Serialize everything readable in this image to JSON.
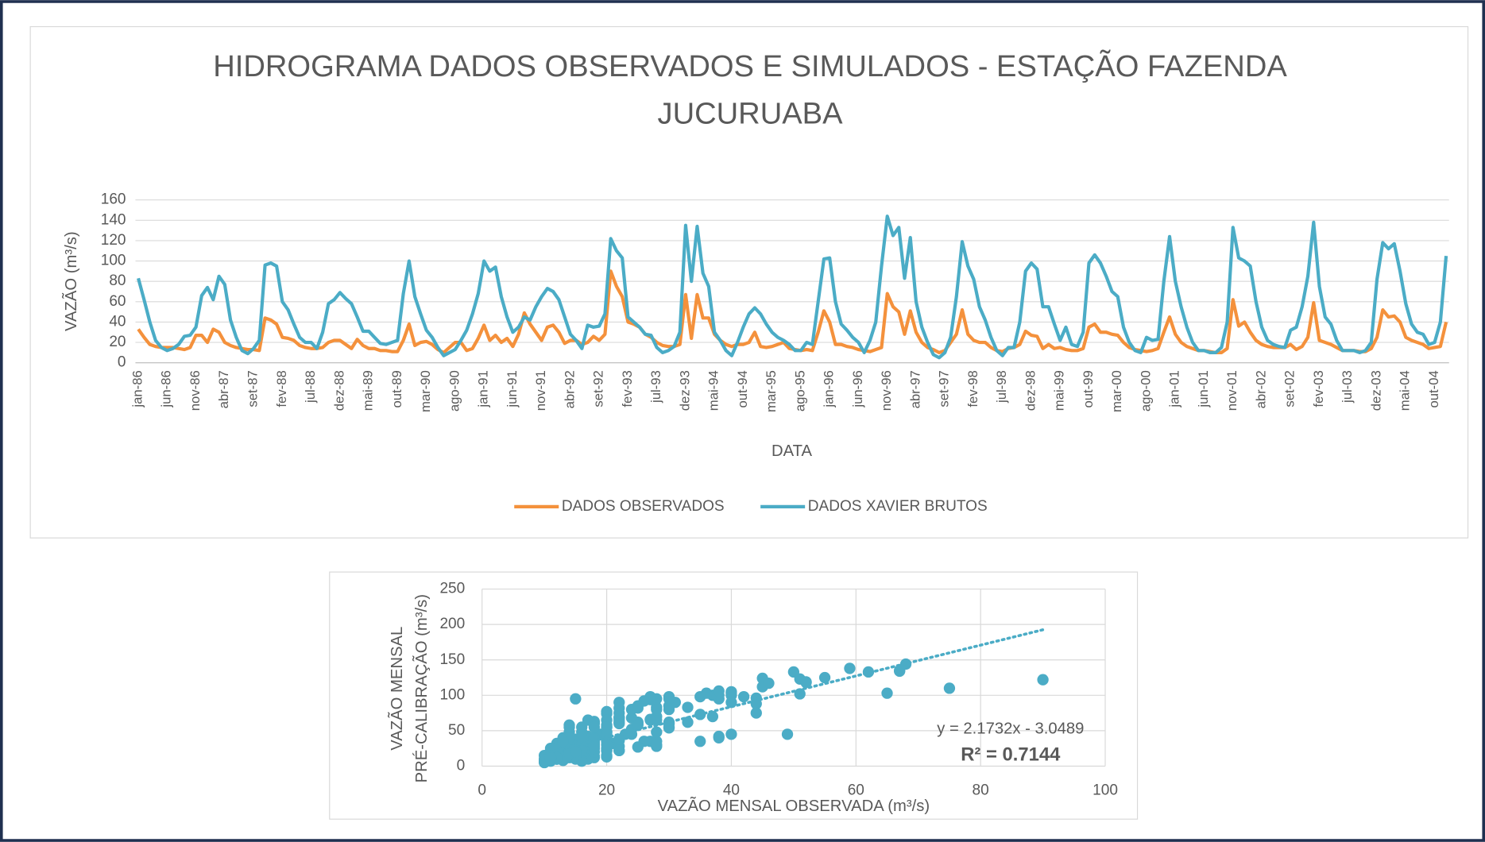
{
  "chart_data": [
    {
      "type": "line",
      "title": [
        "HIDROGRAMA DADOS OBSERVADOS E SIMULADOS - ESTAÇÃO FAZENDA",
        "JUCURUABA"
      ],
      "y_label": "VAZÃO (m³/s)",
      "x_label": "DATA",
      "ylim": [
        0,
        160
      ],
      "yticks": [
        0,
        20,
        40,
        60,
        80,
        100,
        120,
        140,
        160
      ],
      "grid": true,
      "legend": "bottom",
      "categories": [
        "jan-86",
        null,
        null,
        null,
        null,
        "jun-86",
        null,
        null,
        null,
        null,
        "nov-86",
        null,
        null,
        null,
        null,
        "abr-87",
        null,
        null,
        null,
        null,
        "set-87",
        null,
        null,
        null,
        null,
        "fev-88",
        null,
        null,
        null,
        null,
        "jul-88",
        null,
        null,
        null,
        null,
        "dez-88",
        null,
        null,
        null,
        null,
        "mai-89",
        null,
        null,
        null,
        null,
        "out-89",
        null,
        null,
        null,
        null,
        "mar-90",
        null,
        null,
        null,
        null,
        "ago-90",
        null,
        null,
        null,
        null,
        "jan-91",
        null,
        null,
        null,
        null,
        "jun-91",
        null,
        null,
        null,
        null,
        "nov-91",
        null,
        null,
        null,
        null,
        "abr-92",
        null,
        null,
        null,
        null,
        "set-92",
        null,
        null,
        null,
        null,
        "fev-93",
        null,
        null,
        null,
        null,
        "jul-93",
        null,
        null,
        null,
        null,
        "dez-93",
        null,
        null,
        null,
        null,
        "mai-94",
        null,
        null,
        null,
        null,
        "out-94",
        null,
        null,
        null,
        null,
        "mar-95",
        null,
        null,
        null,
        null,
        "ago-95",
        null,
        null,
        null,
        null,
        "jan-96",
        null,
        null,
        null,
        null,
        "jun-96",
        null,
        null,
        null,
        null,
        "nov-96",
        null,
        null,
        null,
        null,
        "abr-97",
        null,
        null,
        null,
        null,
        "set-97",
        null,
        null,
        null,
        null,
        "fev-98",
        null,
        null,
        null,
        null,
        "jul-98",
        null,
        null,
        null,
        null,
        "dez-98",
        null,
        null,
        null,
        null,
        "mai-99",
        null,
        null,
        null,
        null,
        "out-99",
        null,
        null,
        null,
        null,
        "mar-00",
        null,
        null,
        null,
        null,
        "ago-00",
        null,
        null,
        null,
        null,
        "jan-01",
        null,
        null,
        null,
        null,
        "jun-01",
        null,
        null,
        null,
        null,
        "nov-01",
        null,
        null,
        null,
        null,
        "abr-02",
        null,
        null,
        null,
        null,
        "set-02",
        null,
        null,
        null,
        null,
        "fev-03",
        null,
        null,
        null,
        null,
        "jul-03",
        null,
        null,
        null,
        null,
        "dez-03",
        null,
        null,
        null,
        null,
        "mai-04",
        null,
        null,
        null,
        null,
        "out-04",
        null,
        null
      ],
      "series": [
        {
          "name": "DADOS OBSERVADOS",
          "color": "#f4913c",
          "values": [
            33,
            25,
            18,
            16,
            15,
            15,
            15,
            14,
            13,
            15,
            27,
            27,
            20,
            33,
            30,
            20,
            17,
            15,
            14,
            13,
            13,
            12,
            44,
            42,
            38,
            25,
            24,
            22,
            17,
            15,
            14,
            14,
            15,
            20,
            22,
            22,
            18,
            14,
            23,
            17,
            14,
            14,
            12,
            12,
            11,
            11,
            22,
            38,
            17,
            20,
            21,
            18,
            13,
            10,
            15,
            20,
            20,
            12,
            14,
            24,
            37,
            22,
            27,
            20,
            24,
            16,
            28,
            49,
            38,
            30,
            22,
            35,
            37,
            30,
            19,
            22,
            22,
            18,
            20,
            26,
            22,
            28,
            90,
            75,
            65,
            40,
            38,
            35,
            28,
            25,
            20,
            17,
            16,
            16,
            18,
            67,
            24,
            67,
            44,
            44,
            28,
            22,
            18,
            16,
            18,
            18,
            20,
            30,
            16,
            15,
            16,
            18,
            20,
            14,
            13,
            12,
            13,
            12,
            30,
            51,
            40,
            18,
            18,
            16,
            15,
            13,
            12,
            11,
            13,
            15,
            68,
            55,
            50,
            28,
            51,
            30,
            20,
            15,
            13,
            10,
            12,
            20,
            28,
            52,
            28,
            22,
            20,
            20,
            15,
            12,
            11,
            14,
            15,
            18,
            31,
            27,
            26,
            14,
            18,
            14,
            15,
            13,
            12,
            12,
            14,
            35,
            38,
            30,
            30,
            28,
            27,
            20,
            15,
            13,
            12,
            11,
            12,
            14,
            30,
            45,
            28,
            20,
            16,
            14,
            12,
            12,
            11,
            10,
            10,
            14,
            62,
            36,
            40,
            30,
            22,
            18,
            16,
            15,
            15,
            15,
            18,
            13,
            16,
            25,
            59,
            22,
            20,
            18,
            15,
            12,
            12,
            12,
            11,
            11,
            14,
            25,
            52,
            45,
            46,
            40,
            25,
            22,
            20,
            18,
            14,
            15,
            16,
            40
          ]
        },
        {
          "name": "DADOS XAVIER BRUTOS",
          "color": "#4bacc6",
          "values": [
            83,
            62,
            40,
            22,
            15,
            12,
            14,
            18,
            26,
            27,
            35,
            66,
            74,
            62,
            85,
            77,
            42,
            25,
            12,
            9,
            14,
            22,
            96,
            98,
            95,
            60,
            52,
            38,
            25,
            20,
            20,
            14,
            30,
            58,
            62,
            69,
            63,
            58,
            45,
            31,
            31,
            25,
            19,
            18,
            20,
            22,
            68,
            100,
            65,
            48,
            32,
            25,
            15,
            7,
            10,
            13,
            22,
            32,
            48,
            68,
            100,
            90,
            94,
            65,
            45,
            30,
            35,
            45,
            42,
            55,
            65,
            73,
            70,
            62,
            45,
            28,
            22,
            14,
            37,
            35,
            36,
            48,
            122,
            110,
            103,
            45,
            40,
            35,
            28,
            27,
            15,
            10,
            12,
            16,
            30,
            135,
            80,
            134,
            88,
            75,
            30,
            22,
            12,
            7,
            20,
            35,
            48,
            54,
            48,
            38,
            30,
            25,
            22,
            18,
            12,
            12,
            20,
            18,
            60,
            102,
            103,
            60,
            38,
            32,
            25,
            20,
            10,
            22,
            40,
            95,
            144,
            125,
            133,
            83,
            123,
            60,
            35,
            20,
            8,
            5,
            10,
            25,
            65,
            119,
            95,
            82,
            55,
            42,
            25,
            12,
            7,
            15,
            15,
            40,
            90,
            98,
            92,
            55,
            55,
            38,
            22,
            35,
            18,
            16,
            30,
            98,
            106,
            98,
            85,
            70,
            65,
            35,
            20,
            12,
            10,
            25,
            22,
            23,
            80,
            124,
            80,
            55,
            35,
            20,
            12,
            12,
            10,
            10,
            15,
            40,
            133,
            103,
            100,
            95,
            60,
            35,
            22,
            18,
            16,
            15,
            32,
            35,
            55,
            85,
            138,
            75,
            45,
            38,
            22,
            12,
            12,
            12,
            10,
            12,
            20,
            82,
            118,
            112,
            117,
            90,
            58,
            38,
            30,
            28,
            18,
            20,
            40,
            105
          ]
        }
      ]
    },
    {
      "type": "scatter",
      "x_label": "VAZÃO MENSAL OBSERVADA (m³/s)",
      "y_label": [
        "VAZÃO MENSAL",
        "PRÉ-CALIBRAÇÃO (m³/s)"
      ],
      "xlim": [
        0,
        100
      ],
      "xticks": [
        0,
        20,
        40,
        60,
        80,
        100
      ],
      "ylim": [
        0,
        250
      ],
      "yticks": [
        0,
        50,
        100,
        150,
        200,
        250
      ],
      "grid": true,
      "color": "#4bacc6",
      "trendline": {
        "equation": "y = 2.1732x - 3.0489",
        "r2": "R² = 0.7144",
        "slope": 2.1732,
        "intercept": -3.0489
      }
    }
  ]
}
